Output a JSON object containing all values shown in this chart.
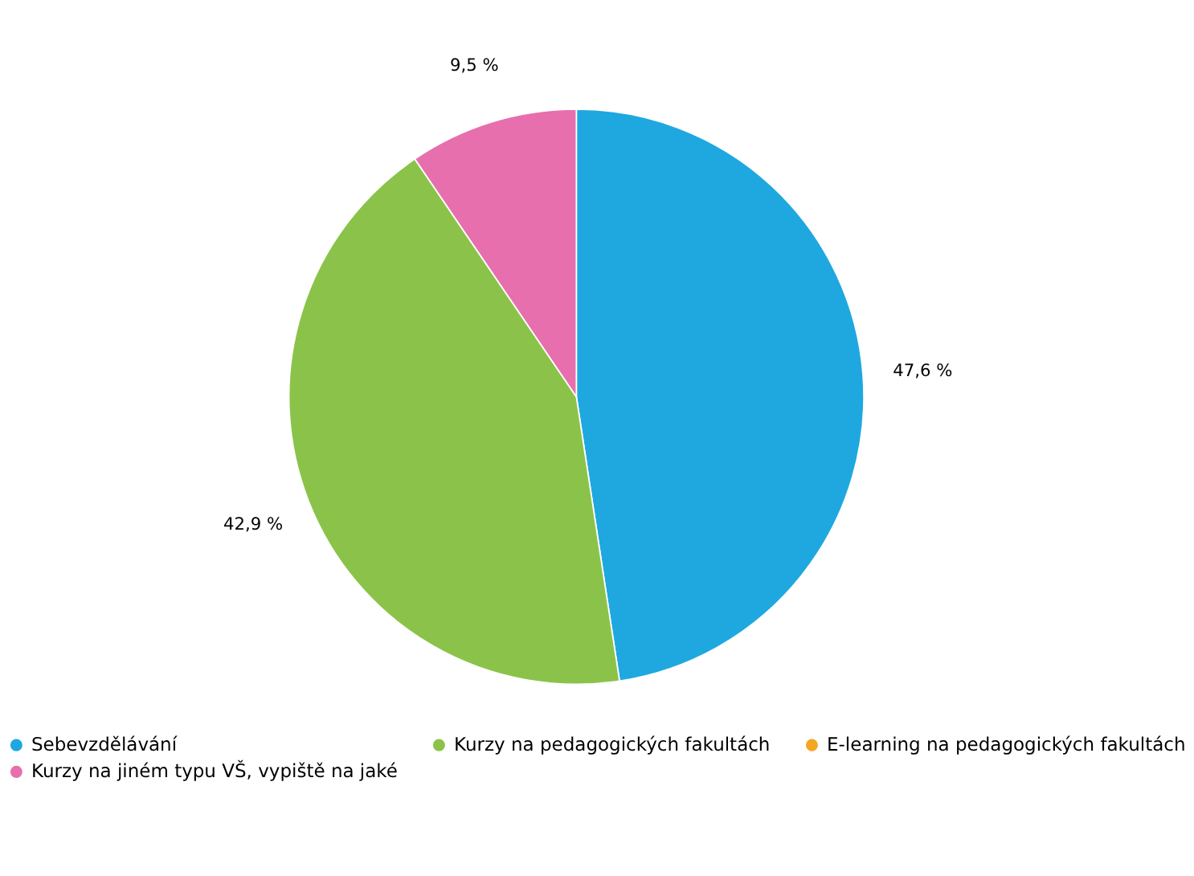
{
  "chart_data": {
    "type": "pie",
    "categories": [
      "Sebevzdělávání",
      "Kurzy na pedagogických fakultách",
      "E-learning na pedagogických fakultách",
      "Kurzy na jiném typu VŠ, vypiště na jaké"
    ],
    "values": [
      47.6,
      42.9,
      0,
      9.5
    ],
    "colors": [
      "#1fa8e0",
      "#8bc34a",
      "#f5a623",
      "#e76fae"
    ],
    "value_labels": [
      "47,6 %",
      "42,9 %",
      null,
      "9,5 %"
    ],
    "legend": "bottom"
  }
}
